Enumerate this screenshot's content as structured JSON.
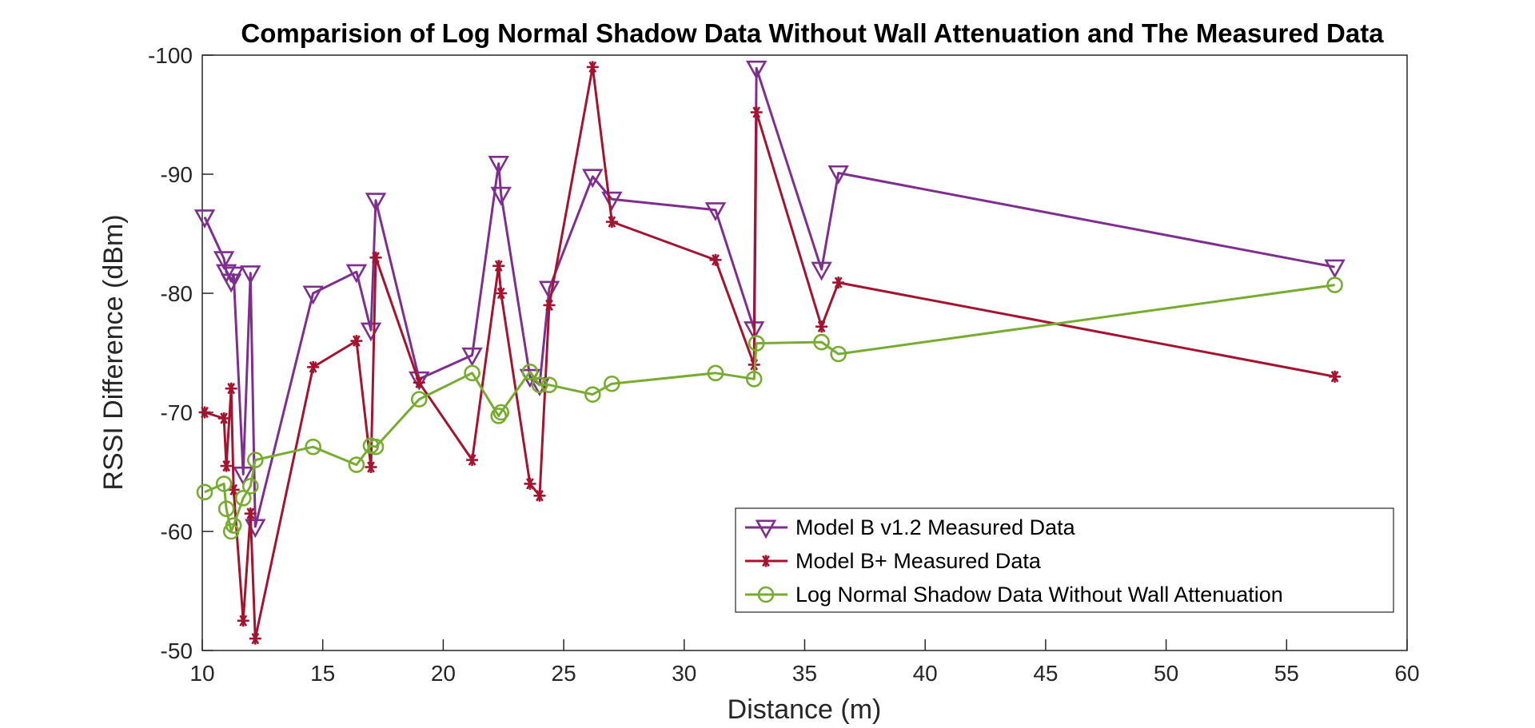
{
  "chart_data": {
    "type": "line",
    "title": "Comparision of Log Normal Shadow Data Without Wall Attenuation and The Measured Data",
    "xlabel": "Distance (m)",
    "ylabel": "RSSI Difference (dBm)",
    "xlim": [
      10,
      60
    ],
    "ylim": [
      -50,
      -100
    ],
    "y_axis_reversed": true,
    "xticks": [
      "10",
      "15",
      "20",
      "25",
      "30",
      "35",
      "40",
      "45",
      "50",
      "55",
      "60"
    ],
    "yticks": [
      "-50",
      "-60",
      "-70",
      "-80",
      "-90",
      "-100"
    ],
    "xtick_values": [
      10,
      15,
      20,
      25,
      30,
      35,
      40,
      45,
      50,
      55,
      60
    ],
    "ytick_values": [
      -50,
      -60,
      -70,
      -80,
      -90,
      -100
    ],
    "grid": false,
    "legend_position": "bottom-right",
    "series": [
      {
        "name": "Model B v1.2 Measured Data",
        "color": "#7E2F8E",
        "marker": "triangle-down",
        "points": [
          [
            10.1,
            -86.4
          ],
          [
            10.9,
            -82.9
          ],
          [
            11.0,
            -81.8
          ],
          [
            11.2,
            -81.0
          ],
          [
            11.3,
            -81.6
          ],
          [
            11.7,
            -64.8
          ],
          [
            12.0,
            -81.7
          ],
          [
            12.2,
            -60.4
          ],
          [
            14.6,
            -80.0
          ],
          [
            16.4,
            -81.8
          ],
          [
            17.0,
            -76.9
          ],
          [
            17.2,
            -87.8
          ],
          [
            19.0,
            -72.8
          ],
          [
            21.2,
            -74.8
          ],
          [
            22.3,
            -90.9
          ],
          [
            22.4,
            -88.3
          ],
          [
            23.6,
            -73.0
          ],
          [
            24.0,
            -72.3
          ],
          [
            24.4,
            -80.4
          ],
          [
            26.2,
            -89.8
          ],
          [
            27.0,
            -87.9
          ],
          [
            31.3,
            -87.0
          ],
          [
            32.9,
            -77.0
          ],
          [
            33.0,
            -98.9
          ],
          [
            35.7,
            -82.0
          ],
          [
            36.4,
            -90.1
          ],
          [
            57.0,
            -82.2
          ]
        ]
      },
      {
        "name": "Model B+ Measured Data",
        "color": "#A2142F",
        "marker": "asterisk",
        "points": [
          [
            10.1,
            -70.0
          ],
          [
            10.9,
            -69.5
          ],
          [
            11.0,
            -65.5
          ],
          [
            11.2,
            -72.0
          ],
          [
            11.3,
            -63.5
          ],
          [
            11.7,
            -52.5
          ],
          [
            12.0,
            -61.5
          ],
          [
            12.2,
            -51.0
          ],
          [
            14.6,
            -73.8
          ],
          [
            16.4,
            -76.0
          ],
          [
            17.0,
            -65.4
          ],
          [
            17.2,
            -83.0
          ],
          [
            19.0,
            -72.5
          ],
          [
            21.2,
            -66.0
          ],
          [
            22.3,
            -82.3
          ],
          [
            22.4,
            -80.0
          ],
          [
            23.6,
            -64.0
          ],
          [
            24.0,
            -63.0
          ],
          [
            24.4,
            -79.0
          ],
          [
            26.2,
            -99.0
          ],
          [
            27.0,
            -86.0
          ],
          [
            31.3,
            -82.8
          ],
          [
            32.9,
            -74.0
          ],
          [
            33.0,
            -95.2
          ],
          [
            35.7,
            -77.2
          ],
          [
            36.4,
            -80.9
          ],
          [
            57.0,
            -73.0
          ]
        ]
      },
      {
        "name": "Log Normal Shadow Data Without Wall Attenuation",
        "color": "#77AC30",
        "marker": "circle",
        "points": [
          [
            10.1,
            -63.3
          ],
          [
            10.9,
            -64.0
          ],
          [
            11.0,
            -61.9
          ],
          [
            11.2,
            -60.0
          ],
          [
            11.3,
            -60.5
          ],
          [
            11.7,
            -62.8
          ],
          [
            12.0,
            -63.8
          ],
          [
            12.2,
            -66.0
          ],
          [
            14.6,
            -67.1
          ],
          [
            16.4,
            -65.6
          ],
          [
            17.0,
            -67.2
          ],
          [
            17.2,
            -67.1
          ],
          [
            19.0,
            -71.1
          ],
          [
            21.2,
            -73.3
          ],
          [
            22.3,
            -69.7
          ],
          [
            22.4,
            -70.0
          ],
          [
            23.6,
            -73.4
          ],
          [
            24.0,
            -72.3
          ],
          [
            24.4,
            -72.3
          ],
          [
            26.2,
            -71.5
          ],
          [
            27.0,
            -72.4
          ],
          [
            31.3,
            -73.3
          ],
          [
            32.9,
            -72.8
          ],
          [
            33.0,
            -75.8
          ],
          [
            35.7,
            -75.9
          ],
          [
            36.4,
            -74.9
          ],
          [
            57.0,
            -80.7
          ]
        ]
      }
    ]
  }
}
